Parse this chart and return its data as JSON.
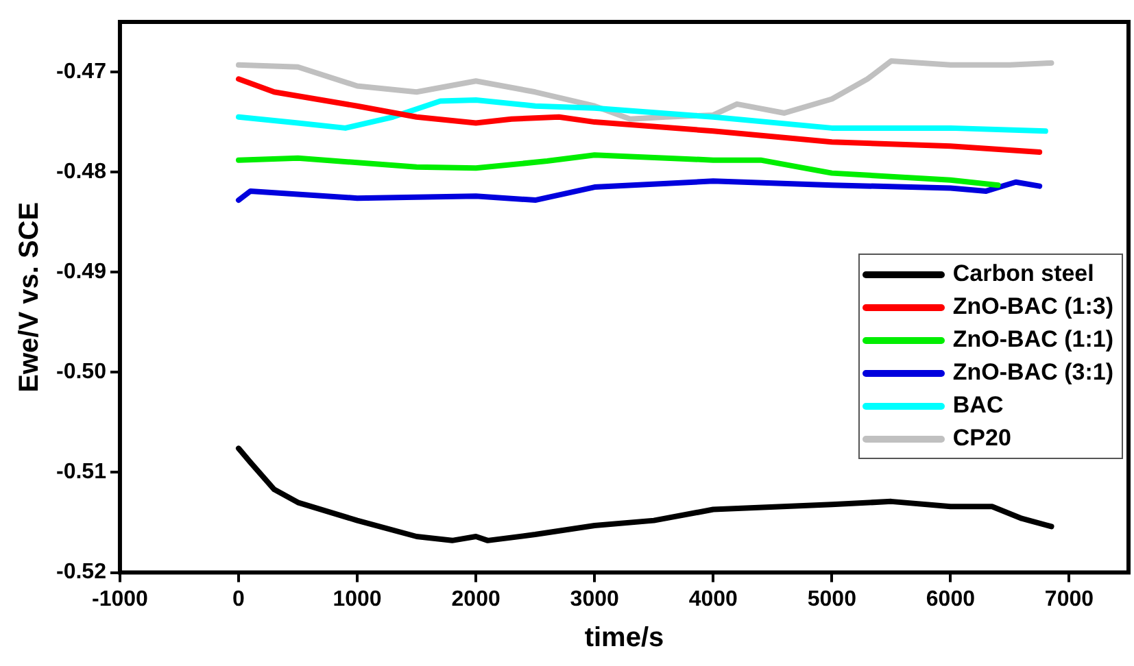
{
  "chart_data": {
    "type": "line",
    "xlabel": "time/s",
    "ylabel": "Ewe/V vs. SCE",
    "xlim": [
      -1000,
      7500
    ],
    "xticks": [
      -1000,
      0,
      1000,
      2000,
      3000,
      4000,
      5000,
      6000,
      7000
    ],
    "ylim": [
      -0.52,
      -0.465
    ],
    "yticks": [
      -0.47,
      -0.48,
      -0.49,
      {
        "value": -0.5,
        "label": "-0.50"
      },
      -0.51,
      -0.52
    ],
    "grid": false,
    "legend": "right",
    "marker": "none",
    "line_style": "solid",
    "series": [
      {
        "name": "Carbon steel",
        "color": "#000000",
        "x": [
          0,
          100,
          300,
          500,
          1000,
          1500,
          1800,
          2000,
          2100,
          2500,
          3000,
          3500,
          4000,
          5000,
          5500,
          6000,
          6350,
          6600,
          6850
        ],
        "values": [
          -0.5076,
          -0.509,
          -0.5117,
          -0.513,
          -0.5148,
          -0.5164,
          -0.5168,
          -0.5164,
          -0.5168,
          -0.5162,
          -0.5153,
          -0.5148,
          -0.5137,
          -0.5132,
          -0.5129,
          -0.5134,
          -0.5134,
          -0.5146,
          -0.5154
        ]
      },
      {
        "name": "ZnO-BAC (1:3)",
        "color": "#ff0000",
        "x": [
          0,
          300,
          1000,
          1500,
          2000,
          2300,
          2700,
          3000,
          4000,
          5000,
          6000,
          6750
        ],
        "values": [
          -0.4707,
          -0.472,
          -0.4734,
          -0.4745,
          -0.4751,
          -0.4747,
          -0.4745,
          -0.475,
          -0.4759,
          -0.477,
          -0.4774,
          -0.478
        ]
      },
      {
        "name": "ZnO-BAC (1:1)",
        "color": "#00ee00",
        "x": [
          0,
          500,
          1500,
          2000,
          2600,
          3000,
          4000,
          4400,
          5000,
          6000,
          6400
        ],
        "values": [
          -0.4788,
          -0.4786,
          -0.4795,
          -0.4796,
          -0.4789,
          -0.4783,
          -0.4788,
          -0.4788,
          -0.4801,
          -0.4808,
          -0.4813
        ]
      },
      {
        "name": "ZnO-BAC (3:1)",
        "color": "#0000dd",
        "x": [
          0,
          100,
          1000,
          2000,
          2500,
          3000,
          4000,
          5000,
          6000,
          6300,
          6550,
          6750
        ],
        "values": [
          -0.4828,
          -0.4819,
          -0.4826,
          -0.4824,
          -0.4828,
          -0.4815,
          -0.4809,
          -0.4813,
          -0.4816,
          -0.4819,
          -0.481,
          -0.4814
        ]
      },
      {
        "name": "BAC",
        "color": "#00ffff",
        "x": [
          0,
          500,
          900,
          1300,
          1700,
          2000,
          2500,
          3000,
          4000,
          5000,
          6000,
          6800
        ],
        "values": [
          -0.4745,
          -0.4751,
          -0.4756,
          -0.4745,
          -0.4729,
          -0.4728,
          -0.4734,
          -0.4736,
          -0.4745,
          -0.4756,
          -0.4756,
          -0.4759
        ]
      },
      {
        "name": "CP20",
        "color": "#c0c0c0",
        "x": [
          0,
          500,
          1000,
          1500,
          2000,
          2500,
          3000,
          3300,
          3600,
          4000,
          4200,
          4600,
          5000,
          5300,
          5500,
          6000,
          6500,
          6850
        ],
        "values": [
          -0.4693,
          -0.4695,
          -0.4714,
          -0.472,
          -0.4709,
          -0.472,
          -0.4734,
          -0.4747,
          -0.4745,
          -0.4743,
          -0.4732,
          -0.4741,
          -0.4727,
          -0.4707,
          -0.4689,
          -0.4693,
          -0.4693,
          -0.4691
        ]
      }
    ]
  }
}
